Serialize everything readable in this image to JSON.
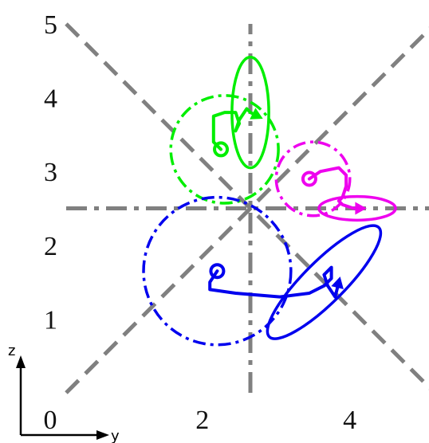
{
  "chart_data": {
    "type": "scatter",
    "xlabel": "y",
    "ylabel": "z",
    "xlim": [
      0,
      5
    ],
    "ylim": [
      0,
      5
    ],
    "x_ticks": [
      "0",
      "2",
      "4"
    ],
    "y_ticks": [
      "1",
      "2",
      "3",
      "4",
      "5"
    ],
    "x_tick_values": [
      0,
      2,
      4
    ],
    "y_tick_values": [
      1,
      2,
      3,
      4,
      5
    ],
    "reference_lines": [
      {
        "kind": "diagonal",
        "style": "dashed",
        "from": [
          0,
          5
        ],
        "to": [
          5,
          0
        ],
        "color": "#808080"
      },
      {
        "kind": "diagonal",
        "style": "dashed",
        "from": [
          0,
          0
        ],
        "to": [
          5,
          5
        ],
        "color": "#808080"
      },
      {
        "kind": "vertical",
        "style": "dash-dot",
        "value": 2.5,
        "color": "#808080"
      },
      {
        "kind": "horizontal",
        "style": "dash-dot",
        "value": 2.5,
        "color": "#808080"
      }
    ],
    "series": [
      {
        "color": "#00ee00",
        "start": [
          2.1,
          3.3
        ],
        "trajectory": [
          [
            2.1,
            3.3
          ],
          [
            2.0,
            3.4
          ],
          [
            2.0,
            3.6
          ],
          [
            2.0,
            3.75
          ],
          [
            2.15,
            3.8
          ],
          [
            2.3,
            3.8
          ],
          [
            2.35,
            3.65
          ],
          [
            2.3,
            3.55
          ],
          [
            2.35,
            3.7
          ],
          [
            2.45,
            3.85
          ],
          [
            2.5,
            3.8
          ],
          [
            2.6,
            3.75
          ]
        ],
        "end": [
          2.6,
          3.75
        ],
        "initial_circle": {
          "center": [
            2.15,
            3.3
          ],
          "radius": 0.73
        },
        "final_ellipse": {
          "center": [
            2.5,
            3.8
          ],
          "semi_axis_y": 0.25,
          "semi_axis_z": 0.75,
          "angle_deg": 0
        }
      },
      {
        "color": "#ee00ee",
        "start": [
          3.3,
          2.9
        ],
        "trajectory": [
          [
            3.3,
            2.9
          ],
          [
            3.45,
            3.0
          ],
          [
            3.7,
            3.05
          ],
          [
            3.8,
            2.95
          ],
          [
            3.8,
            2.8
          ],
          [
            3.75,
            2.65
          ],
          [
            3.7,
            2.6
          ],
          [
            3.75,
            2.55
          ],
          [
            3.9,
            2.5
          ],
          [
            4.0,
            2.5
          ]
        ],
        "end": [
          4.0,
          2.5
        ],
        "initial_circle": {
          "center": [
            3.35,
            2.9
          ],
          "radius": 0.5
        },
        "final_ellipse": {
          "center": [
            3.95,
            2.5
          ],
          "semi_axis_y": 0.52,
          "semi_axis_z": 0.16,
          "angle_deg": 0
        }
      },
      {
        "color": "#0000ee",
        "start": [
          2.05,
          1.65
        ],
        "trajectory": [
          [
            2.05,
            1.65
          ],
          [
            1.95,
            1.5
          ],
          [
            1.95,
            1.4
          ],
          [
            2.3,
            1.35
          ],
          [
            2.9,
            1.3
          ],
          [
            3.3,
            1.35
          ],
          [
            3.5,
            1.45
          ],
          [
            3.6,
            1.55
          ],
          [
            3.6,
            1.7
          ],
          [
            3.5,
            1.6
          ],
          [
            3.55,
            1.45
          ],
          [
            3.65,
            1.3
          ],
          [
            3.7,
            1.5
          ]
        ],
        "end": [
          3.7,
          1.5
        ],
        "initial_circle": {
          "center": [
            2.05,
            1.65
          ],
          "radius": 1.0
        },
        "final_ellipse": {
          "center": [
            3.5,
            1.5
          ],
          "semi_axis_y": 1.05,
          "semi_axis_z": 0.28,
          "angle_deg": -45
        }
      }
    ]
  }
}
